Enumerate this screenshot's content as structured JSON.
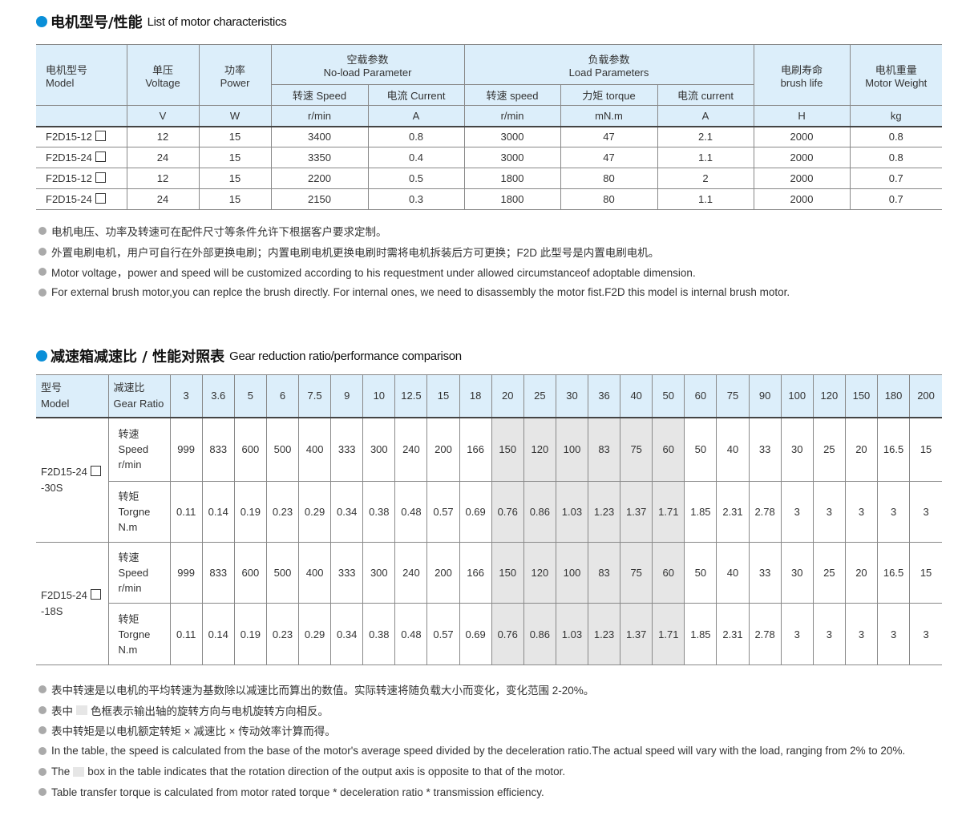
{
  "section1": {
    "title_cn": "电机型号/性能",
    "title_en": "List of motor characteristics",
    "headers": {
      "model_cn": "电机型号",
      "model_en": "Model",
      "voltage_cn": "单压",
      "voltage_en": "Voltage",
      "power_cn": "功率",
      "power_en": "Power",
      "noload_cn": "空载参数",
      "noload_en": "No-load Parameter",
      "load_cn": "负载参数",
      "load_en": "Load Parameters",
      "brush_cn": "电刷寿命",
      "brush_en": "brush life",
      "weight_cn": "电机重量",
      "weight_en": "Motor Weight",
      "nl_speed": "转速 Speed",
      "nl_current": "电流 Current",
      "l_speed": "转速 speed",
      "l_torque": "力矩 torque",
      "l_current": "电流 current"
    },
    "units": [
      "V",
      "W",
      "r/min",
      "A",
      "r/min",
      "mN.m",
      "A",
      "H",
      "kg"
    ],
    "rows": [
      [
        "F2D15-12",
        "12",
        "15",
        "3400",
        "0.8",
        "3000",
        "47",
        "2.1",
        "2000",
        "0.8"
      ],
      [
        "F2D15-24",
        "24",
        "15",
        "3350",
        "0.4",
        "3000",
        "47",
        "1.1",
        "2000",
        "0.8"
      ],
      [
        "F2D15-12",
        "12",
        "15",
        "2200",
        "0.5",
        "1800",
        "80",
        "2",
        "2000",
        "0.7"
      ],
      [
        "F2D15-24",
        "24",
        "15",
        "2150",
        "0.3",
        "1800",
        "80",
        "1.1",
        "2000",
        "0.7"
      ]
    ],
    "notes": [
      "电机电压、功率及转速可在配件尺寸等条件允许下根据客户要求定制。",
      "外置电刷电机，用户可自行在外部更换电刷；内置电刷电机更换电刷时需将电机拆装后方可更换；F2D 此型号是内置电刷电机。",
      "Motor voltage，power and speed will be customized according to his requestment under allowed circumstanceof adoptable dimension.",
      "For external brush motor,you can replce the brush directly. For internal ones, we need to disassembly the motor fist.F2D this model is internal brush motor."
    ]
  },
  "section2": {
    "title_cn": "减速箱减速比 / 性能对照表",
    "title_en": "Gear reduction ratio/performance comparison",
    "model_cn": "型号",
    "model_en": "Model",
    "ratio_cn": "减速比",
    "ratio_en": "Gear Ratio",
    "ratios": [
      "3",
      "3.6",
      "5",
      "6",
      "7.5",
      "9",
      "10",
      "12.5",
      "15",
      "18",
      "20",
      "25",
      "30",
      "36",
      "40",
      "50",
      "60",
      "75",
      "90",
      "100",
      "120",
      "150",
      "180",
      "200"
    ],
    "shaded_ratios": [
      "20",
      "25",
      "30",
      "36",
      "40",
      "50"
    ],
    "speed_label": [
      "转速",
      "Speed",
      "r/min"
    ],
    "torque_label": [
      "转矩",
      "Torgne",
      "N.m"
    ],
    "groups": [
      {
        "model": "F2D15-24",
        "suffix": "-30S",
        "speed": [
          "999",
          "833",
          "600",
          "500",
          "400",
          "333",
          "300",
          "240",
          "200",
          "166",
          "150",
          "120",
          "100",
          "83",
          "75",
          "60",
          "50",
          "40",
          "33",
          "30",
          "25",
          "20",
          "16.5",
          "15"
        ],
        "torque": [
          "0.11",
          "0.14",
          "0.19",
          "0.23",
          "0.29",
          "0.34",
          "0.38",
          "0.48",
          "0.57",
          "0.69",
          "0.76",
          "0.86",
          "1.03",
          "1.23",
          "1.37",
          "1.71",
          "1.85",
          "2.31",
          "2.78",
          "3",
          "3",
          "3",
          "3",
          "3"
        ]
      },
      {
        "model": "F2D15-24",
        "suffix": "-18S",
        "speed": [
          "999",
          "833",
          "600",
          "500",
          "400",
          "333",
          "300",
          "240",
          "200",
          "166",
          "150",
          "120",
          "100",
          "83",
          "75",
          "60",
          "50",
          "40",
          "33",
          "30",
          "25",
          "20",
          "16.5",
          "15"
        ],
        "torque": [
          "0.11",
          "0.14",
          "0.19",
          "0.23",
          "0.29",
          "0.34",
          "0.38",
          "0.48",
          "0.57",
          "0.69",
          "0.76",
          "0.86",
          "1.03",
          "1.23",
          "1.37",
          "1.71",
          "1.85",
          "2.31",
          "2.78",
          "3",
          "3",
          "3",
          "3",
          "3"
        ]
      }
    ],
    "notes": [
      "表中转速是以电机的平均转速为基数除以减速比而算出的数值。实际转速将随负载大小而变化，变化范围 2-20%。",
      "表中",
      "色框表示输出轴的旋转方向与电机旋转方向相反。",
      "表中转矩是以电机额定转矩 × 减速比 × 传动效率计算而得。",
      "In the table, the speed is calculated from the base of the motor's average speed  divided by the deceleration ratio.The actual speed will vary with the load, ranging from 2% to 20%.",
      "The",
      "box in the table indicates that the rotation direction of the output axis is opposite to that of the motor.",
      "Table transfer torque is calculated from motor rated torque * deceleration ratio * transmission efficiency."
    ]
  },
  "colors": {
    "accent": "#0a8fd8",
    "header_bg": "#dceefa",
    "shade": "#e6e6e6"
  }
}
